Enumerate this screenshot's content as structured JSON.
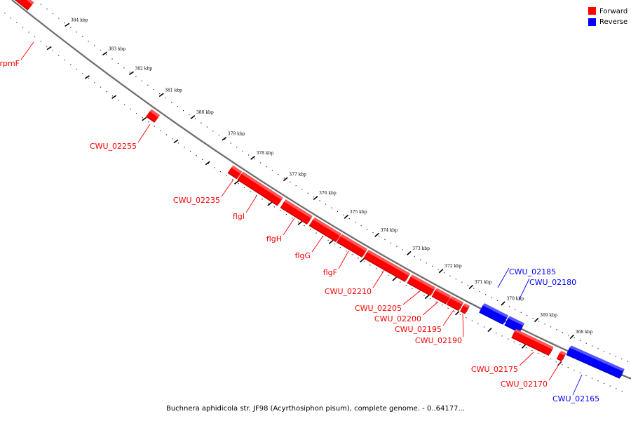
{
  "caption": "Buchnera aphidicola str. JF98 (Acyrthosiphon pisum), complete genome. - 0..64177...",
  "legend": [
    {
      "label": "Forward",
      "color": "#ff0000"
    },
    {
      "label": "Reverse",
      "color": "#0000ff"
    }
  ],
  "colors": {
    "forward": "#ff0000",
    "reverse": "#0000ff",
    "backbone": "#666666"
  },
  "ruler_labels": [
    "384 kbp",
    "383 kbp",
    "382 kbp",
    "381 kbp",
    "380 kbp",
    "379 kbp",
    "378 kbp",
    "377 kbp",
    "376 kbp",
    "375 kbp",
    "374 kbp",
    "373 kbp",
    "372 kbp",
    "371 kbp",
    "370 kbp",
    "369 kbp",
    "368 kbp"
  ],
  "genes": [
    {
      "label": "rpmF",
      "strand": "forward"
    },
    {
      "label": "CWU_02255",
      "strand": "forward"
    },
    {
      "label": "CWU_02235",
      "strand": "forward"
    },
    {
      "label": "flgI",
      "strand": "forward"
    },
    {
      "label": "flgH",
      "strand": "forward"
    },
    {
      "label": "flgG",
      "strand": "forward"
    },
    {
      "label": "flgF",
      "strand": "forward"
    },
    {
      "label": "CWU_02210",
      "strand": "forward"
    },
    {
      "label": "CWU_02205",
      "strand": "forward"
    },
    {
      "label": "CWU_02200",
      "strand": "forward"
    },
    {
      "label": "CWU_02195",
      "strand": "forward"
    },
    {
      "label": "CWU_02190",
      "strand": "forward"
    },
    {
      "label": "CWU_02185",
      "strand": "reverse"
    },
    {
      "label": "CWU_02180",
      "strand": "reverse"
    },
    {
      "label": "CWU_02175",
      "strand": "forward"
    },
    {
      "label": "CWU_02170",
      "strand": "forward"
    },
    {
      "label": "CWU_02165",
      "strand": "reverse"
    }
  ]
}
